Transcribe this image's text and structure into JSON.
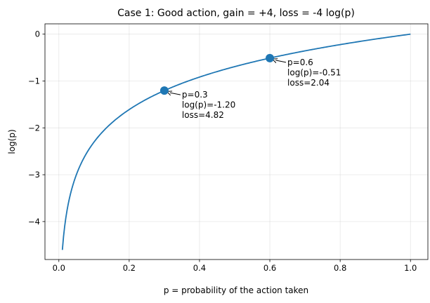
{
  "chart_data": {
    "type": "line",
    "title": "Case 1: Good action, gain = +4, loss = -4 log(p)",
    "xlabel": "p = probability of the action taken",
    "ylabel": "log(p)",
    "xlim": [
      -0.0395,
      1.0495
    ],
    "ylim": [
      -4.81,
      0.22
    ],
    "x_ticks": [
      0.0,
      0.2,
      0.4,
      0.6,
      0.8,
      1.0
    ],
    "x_tick_labels": [
      "0.0",
      "0.2",
      "0.4",
      "0.6",
      "0.8",
      "1.0"
    ],
    "y_ticks": [
      0,
      -1,
      -2,
      -3,
      -4
    ],
    "y_tick_labels": [
      "0",
      "−1",
      "−2",
      "−3",
      "−4"
    ],
    "grid": true,
    "series": [
      {
        "function": "log(p)",
        "x_range": [
          0.01,
          1.0
        ],
        "color": "#1f77b4"
      }
    ],
    "points": [
      {
        "x": 0.3,
        "y": -1.204,
        "lines": [
          "p=0.3",
          "log(p)=-1.20",
          "loss=4.82"
        ]
      },
      {
        "x": 0.6,
        "y": -0.511,
        "lines": [
          "p=0.6",
          "log(p)=-0.51",
          "loss=2.04"
        ]
      }
    ]
  }
}
